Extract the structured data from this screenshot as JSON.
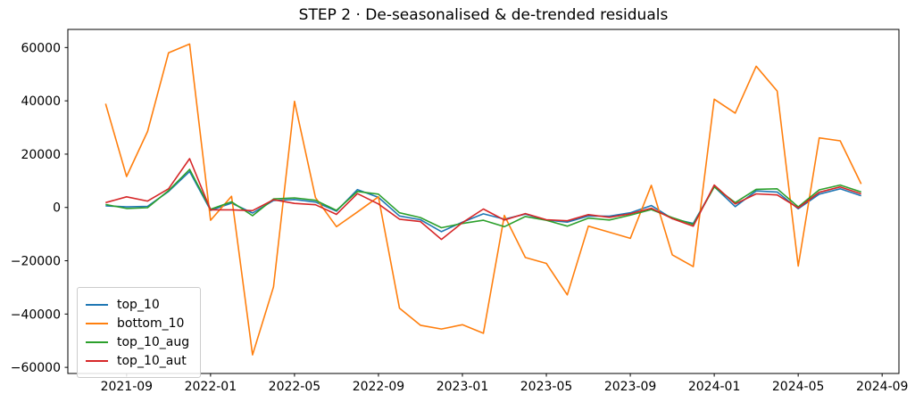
{
  "title": "STEP 2 · De-seasonalised & de-trended residuals",
  "legend": {
    "items": [
      {
        "label": "top_10",
        "color": "#1f77b4"
      },
      {
        "label": "bottom_10",
        "color": "#ff7f0e"
      },
      {
        "label": "top_10_aug",
        "color": "#2ca02c"
      },
      {
        "label": "top_10_aut",
        "color": "#d62728"
      }
    ]
  },
  "y_axis": {
    "ticks": [
      {
        "label": "60000",
        "value": 60000
      },
      {
        "label": "40000",
        "value": 40000
      },
      {
        "label": "20000",
        "value": 20000
      },
      {
        "label": "0",
        "value": 0
      },
      {
        "label": "−20000",
        "value": -20000
      },
      {
        "label": "−40000",
        "value": -40000
      },
      {
        "label": "−60000",
        "value": -60000
      }
    ]
  },
  "x_axis": {
    "ticks": [
      {
        "label": "2021-09",
        "index": 1
      },
      {
        "label": "2022-01",
        "index": 5
      },
      {
        "label": "2022-05",
        "index": 9
      },
      {
        "label": "2022-09",
        "index": 13
      },
      {
        "label": "2023-01",
        "index": 17
      },
      {
        "label": "2023-05",
        "index": 21
      },
      {
        "label": "2023-09",
        "index": 25
      },
      {
        "label": "2024-01",
        "index": 29
      },
      {
        "label": "2024-05",
        "index": 33
      },
      {
        "label": "2024-09",
        "index": 37
      }
    ]
  },
  "chart_data": {
    "type": "line",
    "title": "STEP 2 · De-seasonalised & de-trended residuals",
    "xlabel": "",
    "ylabel": "",
    "grid": false,
    "legend_position": "lower left",
    "ylim": [
      -62300,
      66800
    ],
    "xlim_index": [
      -1.8,
      37.8
    ],
    "x": [
      "2021-08",
      "2021-09",
      "2021-10",
      "2021-11",
      "2021-12",
      "2022-01",
      "2022-02",
      "2022-03",
      "2022-04",
      "2022-05",
      "2022-06",
      "2022-07",
      "2022-08",
      "2022-09",
      "2022-10",
      "2022-11",
      "2022-12",
      "2023-01",
      "2023-02",
      "2023-03",
      "2023-04",
      "2023-05",
      "2023-06",
      "2023-07",
      "2023-08",
      "2023-09",
      "2023-10",
      "2023-11",
      "2023-12",
      "2024-01",
      "2024-02",
      "2024-03",
      "2024-04",
      "2024-05",
      "2024-06",
      "2024-07",
      "2024-08"
    ],
    "series": [
      {
        "name": "top_10",
        "color": "#1f77b4",
        "values": [
          600,
          200,
          400,
          6000,
          13500,
          -1100,
          1600,
          -2100,
          2600,
          3000,
          2000,
          -1400,
          6700,
          3800,
          -3200,
          -4600,
          -9100,
          -5500,
          -2400,
          -4400,
          -2500,
          -4700,
          -5500,
          -3200,
          -3300,
          -2000,
          700,
          -4200,
          -6000,
          7800,
          300,
          6200,
          5800,
          -500,
          5000,
          7000,
          4400
        ]
      },
      {
        "name": "bottom_10",
        "color": "#ff7f0e",
        "values": [
          38900,
          11600,
          28500,
          58000,
          61300,
          -4800,
          4200,
          -55300,
          -29800,
          39800,
          3700,
          -7200,
          -1700,
          4000,
          -37800,
          -44200,
          -45600,
          -44000,
          -47200,
          -3000,
          -18800,
          -21000,
          -32800,
          -7000,
          -9300,
          -11600,
          8300,
          -17800,
          -22200,
          40600,
          35400,
          53000,
          43700,
          -22000,
          26100,
          25000,
          8800
        ]
      },
      {
        "name": "top_10_aug",
        "color": "#2ca02c",
        "values": [
          1100,
          -400,
          -100,
          6300,
          14300,
          -700,
          2100,
          -3100,
          3200,
          3600,
          2700,
          -1100,
          6000,
          5000,
          -2000,
          -3800,
          -7600,
          -6000,
          -4800,
          -7200,
          -3400,
          -4800,
          -7000,
          -4000,
          -4700,
          -2900,
          -800,
          -3800,
          -6400,
          7700,
          1800,
          6800,
          7000,
          200,
          6600,
          8400,
          5800
        ]
      },
      {
        "name": "top_10_aut",
        "color": "#d62728",
        "values": [
          1800,
          4000,
          2400,
          7000,
          18300,
          -900,
          -900,
          -1200,
          2900,
          1500,
          1000,
          -2600,
          5200,
          1300,
          -4400,
          -5300,
          -12000,
          -5700,
          -600,
          -4700,
          -2300,
          -4600,
          -5000,
          -2700,
          -3700,
          -2400,
          -300,
          -4200,
          -7000,
          8400,
          1300,
          5100,
          4700,
          -200,
          5700,
          7700,
          5100
        ]
      }
    ]
  }
}
